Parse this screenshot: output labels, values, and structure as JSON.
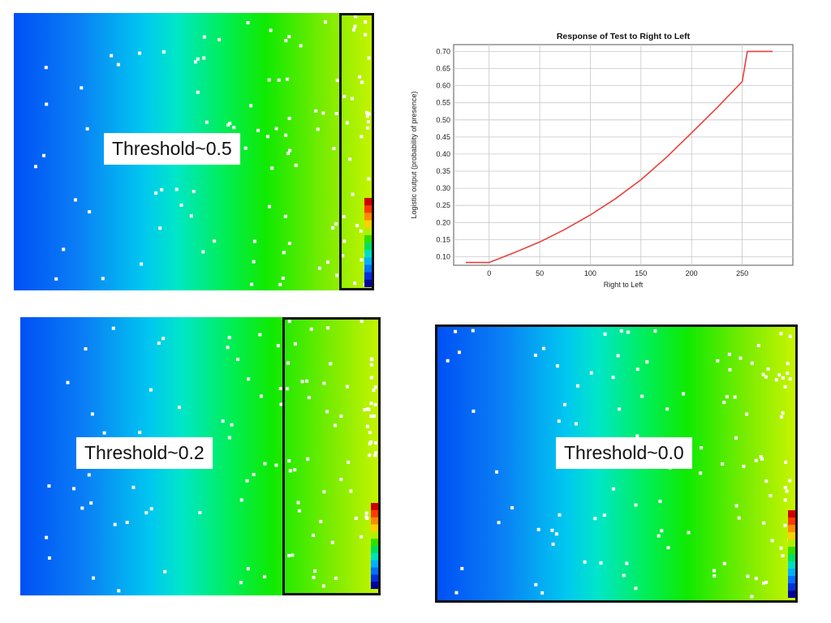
{
  "panels": [
    {
      "id": "p1",
      "label": "Threshold~0.5"
    },
    {
      "id": "p2",
      "label": "Threshold~0.2"
    },
    {
      "id": "p3",
      "label": "Threshold~0.0"
    }
  ],
  "colors": {
    "curve": "#e8403c",
    "grid": "#c8c8c8",
    "selection": "#111111"
  },
  "chart_data": {
    "type": "line",
    "title": "Response of Test to Right to Left",
    "xlabel": "Right to Left",
    "ylabel": "Logistic output (probability of presence)",
    "xlim": [
      -35,
      300
    ],
    "ylim": [
      0.075,
      0.72
    ],
    "xticks": [
      0,
      50,
      100,
      150,
      200,
      250
    ],
    "yticks": [
      0.1,
      0.15,
      0.2,
      0.25,
      0.3,
      0.35,
      0.4,
      0.45,
      0.5,
      0.55,
      0.6,
      0.65,
      0.7
    ],
    "grid": true,
    "series": [
      {
        "x": [
          -23,
          0,
          25,
          50,
          75,
          100,
          125,
          150,
          175,
          200,
          225,
          250,
          255,
          280
        ],
        "y": [
          0.083,
          0.083,
          0.112,
          0.143,
          0.18,
          0.222,
          0.27,
          0.325,
          0.39,
          0.462,
          0.535,
          0.612,
          0.7,
          0.7
        ]
      }
    ]
  }
}
